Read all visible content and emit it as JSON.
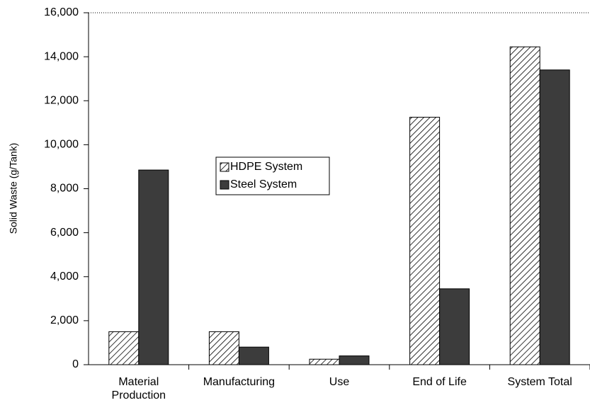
{
  "chart_data": {
    "type": "bar",
    "y_label": "Solid Waste (g/Tank)",
    "categories": [
      "Material Production",
      "Manufacturing",
      "Use",
      "End of Life",
      "System Total"
    ],
    "series": [
      {
        "name": "HDPE System",
        "color": "#000000",
        "pattern": "diagonal-hatch",
        "values": [
          1500,
          1500,
          250,
          11250,
          14450
        ]
      },
      {
        "name": "Steel System",
        "color": "#3c3c3c",
        "values": [
          8850,
          800,
          400,
          3450,
          13400
        ]
      }
    ],
    "ylim": [
      0,
      16000
    ],
    "yticks": [
      0,
      {
        "value": 2000,
        "label": "2,000"
      },
      {
        "value": 4000,
        "label": "4,000"
      },
      {
        "value": 6000,
        "label": "6,000"
      },
      {
        "value": 8000,
        "label": "8,000"
      },
      {
        "value": 10000,
        "label": "10,000"
      },
      {
        "value": 12000,
        "label": "12,000"
      },
      {
        "value": 14000,
        "label": "14,000"
      },
      {
        "value": 16000,
        "label": "16,000"
      }
    ],
    "grid": false
  }
}
